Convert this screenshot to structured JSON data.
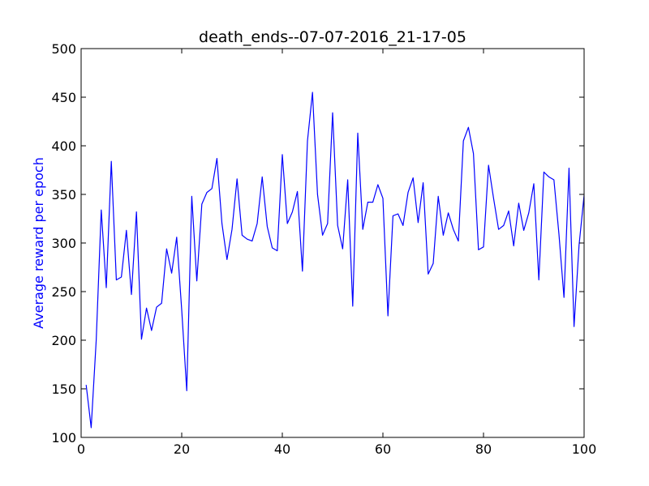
{
  "chart_data": {
    "type": "line",
    "title": "death_ends--07-07-2016_21-17-05",
    "xlabel": "",
    "ylabel": "Average reward per epoch",
    "xlim": [
      0,
      100
    ],
    "ylim": [
      100,
      500
    ],
    "xticks": [
      0,
      20,
      40,
      60,
      80,
      100
    ],
    "yticks": [
      100,
      150,
      200,
      250,
      300,
      350,
      400,
      450,
      500
    ],
    "grid": false,
    "colors": {
      "line": "#0000ff",
      "ylabel": "#0000ff",
      "axes": "#000000"
    },
    "series": [
      {
        "x": [
          1,
          2,
          3,
          4,
          5,
          6,
          7,
          8,
          9,
          10,
          11,
          12,
          13,
          14,
          15,
          16,
          17,
          18,
          19,
          20,
          21,
          22,
          23,
          24,
          25,
          26,
          27,
          28,
          29,
          30,
          31,
          32,
          33,
          34,
          35,
          36,
          37,
          38,
          39,
          40,
          41,
          42,
          43,
          44,
          45,
          46,
          47,
          48,
          49,
          50,
          51,
          52,
          53,
          54,
          55,
          56,
          57,
          58,
          59,
          60,
          61,
          62,
          63,
          64,
          65,
          66,
          67,
          68,
          69,
          70,
          71,
          72,
          73,
          74,
          75,
          76,
          77,
          78,
          79,
          80,
          81,
          82,
          83,
          84,
          85,
          86,
          87,
          88,
          89,
          90,
          91,
          92,
          93,
          94,
          95,
          96,
          97,
          98,
          99,
          100
        ],
        "values": [
          154,
          110,
          200,
          334,
          254,
          384,
          262,
          265,
          313,
          247,
          332,
          201,
          233,
          210,
          234,
          238,
          294,
          269,
          306,
          231,
          148,
          348,
          261,
          340,
          352,
          356,
          387,
          320,
          283,
          314,
          366,
          308,
          304,
          302,
          320,
          368,
          317,
          295,
          292,
          391,
          320,
          332,
          353,
          271,
          405,
          455,
          350,
          308,
          320,
          434,
          318,
          294,
          365,
          235,
          413,
          314,
          342,
          342,
          360,
          346,
          225,
          328,
          330,
          318,
          352,
          367,
          321,
          362,
          268,
          279,
          348,
          308,
          331,
          314,
          302,
          405,
          419,
          392,
          293,
          296,
          380,
          346,
          314,
          318,
          333,
          297,
          341,
          313,
          331,
          361,
          262,
          373,
          368,
          365,
          309,
          244,
          377,
          214,
          298,
          349
        ]
      }
    ]
  }
}
